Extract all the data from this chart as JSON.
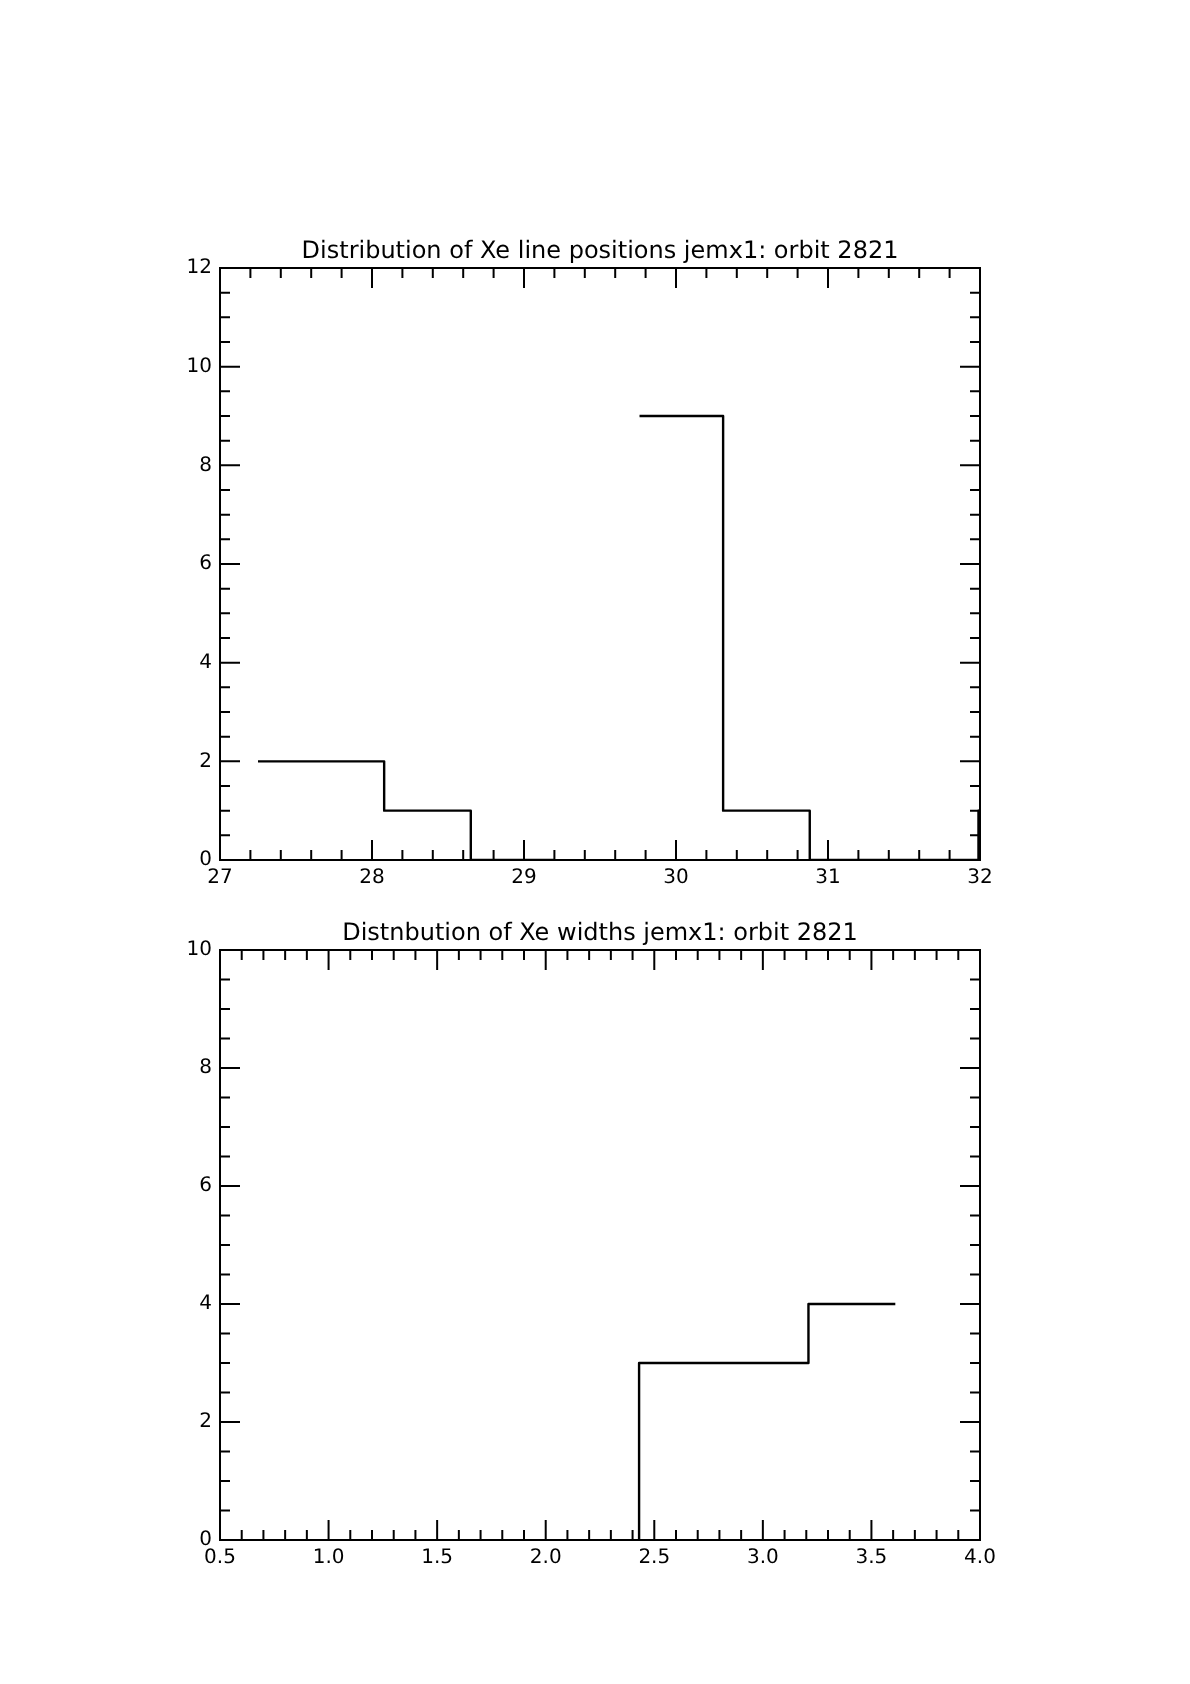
{
  "chart_data": [
    {
      "type": "step",
      "title": "Distribution of Xe line positions jemx1: orbit 2821",
      "series": [
        {
          "color": "#000000",
          "x": [
            27.25,
            28.08,
            28.65,
            29.2
          ],
          "values": [
            2,
            1,
            0,
            0
          ]
        },
        {
          "color": "#000000",
          "x": [
            29.76,
            30.31,
            30.88,
            31.99,
            32
          ],
          "values": [
            9,
            1,
            0,
            1,
            1
          ]
        }
      ],
      "xlim": [
        27,
        32
      ],
      "xticks": [
        27,
        {
          "value": 27.2,
          "label": null
        },
        {
          "value": 27.4,
          "label": null
        },
        {
          "value": 27.6,
          "label": null
        },
        {
          "value": 27.8,
          "label": null
        },
        28,
        {
          "value": 28.2,
          "label": null
        },
        {
          "value": 28.4,
          "label": null
        },
        {
          "value": 28.6,
          "label": null
        },
        {
          "value": 28.8,
          "label": null
        },
        29,
        {
          "value": 29.2,
          "label": null
        },
        {
          "value": 29.4,
          "label": null
        },
        {
          "value": 29.6,
          "label": null
        },
        {
          "value": 29.8,
          "label": null
        },
        30,
        {
          "value": 30.2,
          "label": null
        },
        {
          "value": 30.4,
          "label": null
        },
        {
          "value": 30.6,
          "label": null
        },
        {
          "value": 30.8,
          "label": null
        },
        31,
        {
          "value": 31.2,
          "label": null
        },
        {
          "value": 31.4,
          "label": null
        },
        {
          "value": 31.6,
          "label": null
        },
        {
          "value": 31.8,
          "label": null
        },
        32
      ],
      "ylim": [
        0,
        12
      ],
      "yticks": [
        0,
        {
          "value": 0.5,
          "label": null
        },
        {
          "value": 1,
          "label": null
        },
        {
          "value": 1.5,
          "label": null
        },
        2,
        {
          "value": 2.5,
          "label": null
        },
        {
          "value": 3,
          "label": null
        },
        {
          "value": 3.5,
          "label": null
        },
        4,
        {
          "value": 4.5,
          "label": null
        },
        {
          "value": 5,
          "label": null
        },
        {
          "value": 5.5,
          "label": null
        },
        6,
        {
          "value": 6.5,
          "label": null
        },
        {
          "value": 7,
          "label": null
        },
        {
          "value": 7.5,
          "label": null
        },
        8,
        {
          "value": 8.5,
          "label": null
        },
        {
          "value": 9,
          "label": null
        },
        {
          "value": 9.5,
          "label": null
        },
        10,
        {
          "value": 10.5,
          "label": null
        },
        {
          "value": 11,
          "label": null
        },
        {
          "value": 11.5,
          "label": null
        },
        12
      ]
    },
    {
      "type": "step",
      "title": "Distnbution of Xe widths jemx1: orbit 2821",
      "series": [
        {
          "color": "#000000",
          "x": [
            2.43,
            2.43,
            3.21,
            3.61
          ],
          "values": [
            0,
            3,
            4,
            4
          ]
        }
      ],
      "xlim": [
        0.5,
        4
      ],
      "xticks": [
        0.5,
        {
          "value": 0.6,
          "label": null
        },
        {
          "value": 0.7,
          "label": null
        },
        {
          "value": 0.8,
          "label": null
        },
        {
          "value": 0.9,
          "label": null
        },
        {
          "value": 1,
          "label": "1.0"
        },
        {
          "value": 1.1,
          "label": null
        },
        {
          "value": 1.2,
          "label": null
        },
        {
          "value": 1.3,
          "label": null
        },
        {
          "value": 1.4,
          "label": null
        },
        1.5,
        {
          "value": 1.6,
          "label": null
        },
        {
          "value": 1.7,
          "label": null
        },
        {
          "value": 1.8,
          "label": null
        },
        {
          "value": 1.9,
          "label": null
        },
        {
          "value": 2,
          "label": "2.0"
        },
        {
          "value": 2.1,
          "label": null
        },
        {
          "value": 2.2,
          "label": null
        },
        {
          "value": 2.3,
          "label": null
        },
        {
          "value": 2.4,
          "label": null
        },
        2.5,
        {
          "value": 2.6,
          "label": null
        },
        {
          "value": 2.7,
          "label": null
        },
        {
          "value": 2.8,
          "label": null
        },
        {
          "value": 2.9,
          "label": null
        },
        {
          "value": 3,
          "label": "3.0"
        },
        {
          "value": 3.1,
          "label": null
        },
        {
          "value": 3.2,
          "label": null
        },
        {
          "value": 3.3,
          "label": null
        },
        {
          "value": 3.4,
          "label": null
        },
        3.5,
        {
          "value": 3.6,
          "label": null
        },
        {
          "value": 3.7,
          "label": null
        },
        {
          "value": 3.8,
          "label": null
        },
        {
          "value": 3.9,
          "label": null
        },
        {
          "value": 4,
          "label": "4.0"
        }
      ],
      "ylim": [
        0,
        10
      ],
      "yticks": [
        0,
        {
          "value": 0.5,
          "label": null
        },
        {
          "value": 1,
          "label": null
        },
        {
          "value": 1.5,
          "label": null
        },
        2,
        {
          "value": 2.5,
          "label": null
        },
        {
          "value": 3,
          "label": null
        },
        {
          "value": 3.5,
          "label": null
        },
        4,
        {
          "value": 4.5,
          "label": null
        },
        {
          "value": 5,
          "label": null
        },
        {
          "value": 5.5,
          "label": null
        },
        6,
        {
          "value": 6.5,
          "label": null
        },
        {
          "value": 7,
          "label": null
        },
        {
          "value": 7.5,
          "label": null
        },
        8,
        {
          "value": 8.5,
          "label": null
        },
        {
          "value": 9,
          "label": null
        },
        {
          "value": 9.5,
          "label": null
        },
        10
      ]
    }
  ]
}
